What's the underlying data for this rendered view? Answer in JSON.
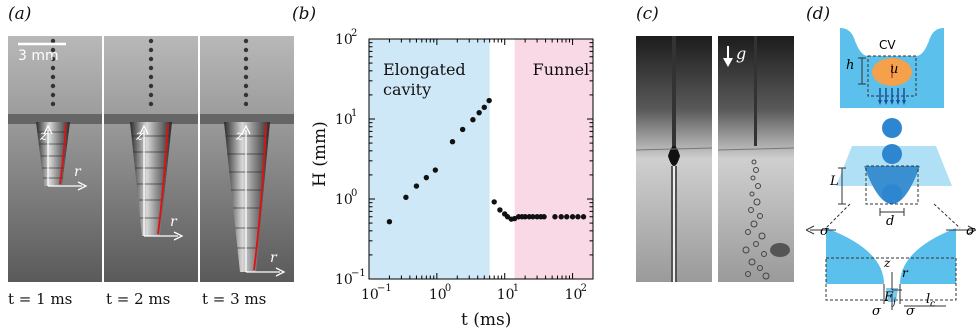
{
  "panels": {
    "a": {
      "label": "(a)",
      "scale_bar": "3 mm",
      "frames": [
        {
          "t": "t = 1 ms",
          "z": "z",
          "r": "r"
        },
        {
          "t": "t = 2 ms",
          "z": "z",
          "r": "r"
        },
        {
          "t": "t = 3 ms",
          "z": "z",
          "r": "r"
        }
      ]
    },
    "b": {
      "label": "(b)"
    },
    "c": {
      "label": "(c)",
      "g": "g"
    },
    "d": {
      "label": "(d)",
      "cv": "CV",
      "h": "h",
      "u": "u",
      "L": "L",
      "d": "d",
      "sigma": "σ",
      "z": "z",
      "r": "r",
      "F": "F",
      "F_sub": "j",
      "l": "l",
      "l_sub": "c"
    }
  },
  "chart_data": {
    "type": "scatter",
    "xlabel": "t (ms)",
    "ylabel": "H (mm)",
    "xscale": "log",
    "yscale": "log",
    "xlim": [
      0.1,
      200
    ],
    "ylim": [
      0.1,
      100
    ],
    "x_ticks": [
      {
        "value": 0.1,
        "label": "10"
      },
      {
        "value": 1,
        "label": "10"
      },
      {
        "value": 10,
        "label": "10"
      },
      {
        "value": 100,
        "label": "10"
      }
    ],
    "x_tick_exponents": [
      "−1",
      "0",
      "1",
      "2"
    ],
    "y_ticks": [
      {
        "value": 0.1,
        "label": "10"
      },
      {
        "value": 1,
        "label": "10"
      },
      {
        "value": 10,
        "label": "10"
      },
      {
        "value": 100,
        "label": "10"
      }
    ],
    "y_tick_exponents": [
      "−1",
      "0",
      "1",
      "2"
    ],
    "regions": [
      {
        "label_lines": [
          "Elongated",
          "cavity"
        ],
        "x_start": 0.1,
        "x_end": 6,
        "color": "#cfe8f7"
      },
      {
        "label_lines": [
          "Funnel"
        ],
        "x_start": 14,
        "x_end": 200,
        "color": "#f9d9e6"
      }
    ],
    "points": [
      {
        "x": 0.2,
        "y": 0.52
      },
      {
        "x": 0.35,
        "y": 1.05
      },
      {
        "x": 0.5,
        "y": 1.45
      },
      {
        "x": 0.7,
        "y": 1.85
      },
      {
        "x": 0.95,
        "y": 2.3
      },
      {
        "x": 1.7,
        "y": 5.2
      },
      {
        "x": 2.4,
        "y": 7.4
      },
      {
        "x": 3.4,
        "y": 9.8
      },
      {
        "x": 4.2,
        "y": 12
      },
      {
        "x": 5.0,
        "y": 14
      },
      {
        "x": 5.9,
        "y": 17
      },
      {
        "x": 7.0,
        "y": 0.92
      },
      {
        "x": 8.5,
        "y": 0.73
      },
      {
        "x": 10.0,
        "y": 0.65
      },
      {
        "x": 11.0,
        "y": 0.6
      },
      {
        "x": 12.5,
        "y": 0.56
      },
      {
        "x": 14.0,
        "y": 0.57
      },
      {
        "x": 16.0,
        "y": 0.6
      },
      {
        "x": 18.0,
        "y": 0.6
      },
      {
        "x": 20.0,
        "y": 0.6
      },
      {
        "x": 23.0,
        "y": 0.6
      },
      {
        "x": 26.0,
        "y": 0.6
      },
      {
        "x": 30.0,
        "y": 0.6
      },
      {
        "x": 34.0,
        "y": 0.6
      },
      {
        "x": 38.0,
        "y": 0.6
      },
      {
        "x": 55.0,
        "y": 0.6
      },
      {
        "x": 68.0,
        "y": 0.6
      },
      {
        "x": 82.0,
        "y": 0.6
      },
      {
        "x": 100.0,
        "y": 0.6
      },
      {
        "x": 120.0,
        "y": 0.6
      },
      {
        "x": 145.0,
        "y": 0.6
      }
    ]
  }
}
